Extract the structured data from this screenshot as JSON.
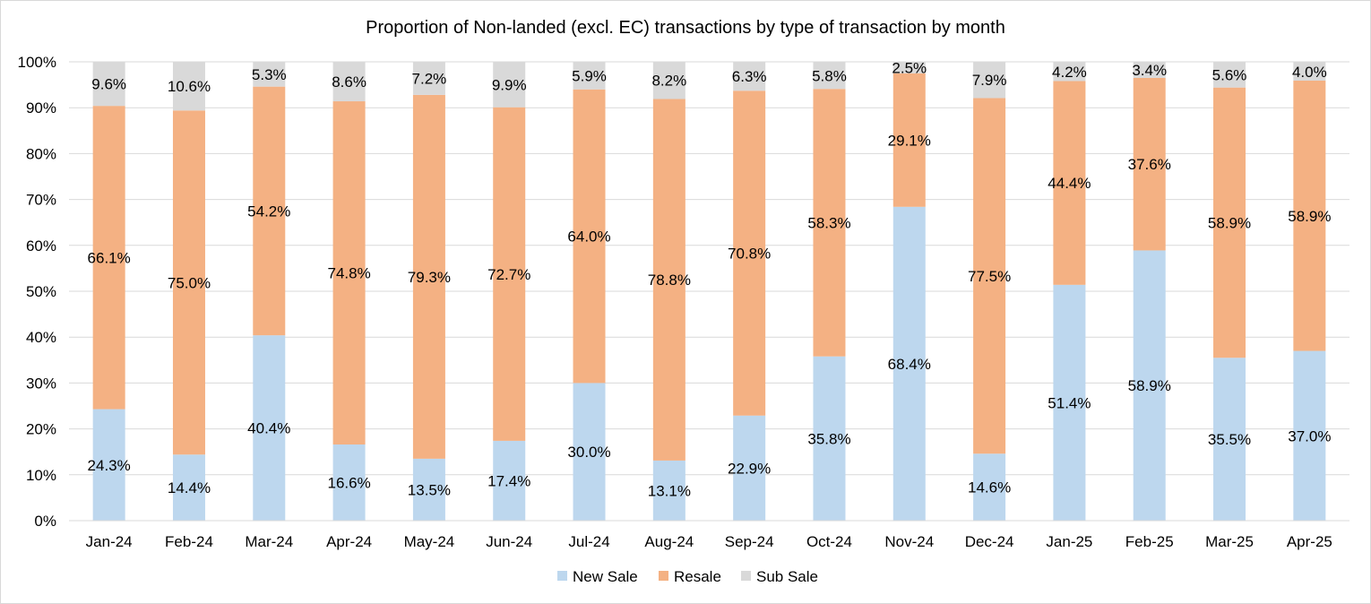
{
  "chart_data": {
    "type": "bar",
    "stacked": true,
    "percent_stacked": true,
    "title": "Proportion of Non-landed (excl. EC) transactions by type of transaction by month",
    "categories": [
      "Jan-24",
      "Feb-24",
      "Mar-24",
      "Apr-24",
      "May-24",
      "Jun-24",
      "Jul-24",
      "Aug-24",
      "Sep-24",
      "Oct-24",
      "Nov-24",
      "Dec-24",
      "Jan-25",
      "Feb-25",
      "Mar-25",
      "Apr-25"
    ],
    "series": [
      {
        "name": "New Sale",
        "color": "#bdd7ee",
        "values": [
          24.3,
          14.4,
          40.4,
          16.6,
          13.5,
          17.4,
          30.0,
          13.1,
          22.9,
          35.8,
          68.4,
          14.6,
          51.4,
          58.9,
          35.5,
          37.0
        ],
        "labels": [
          "24.3%",
          "14.4%",
          "40.4%",
          "16.6%",
          "13.5%",
          "17.4%",
          "30.0%",
          "13.1%",
          "22.9%",
          "35.8%",
          "68.4%",
          "14.6%",
          "51.4%",
          "58.9%",
          "35.5%",
          "37.0%"
        ]
      },
      {
        "name": "Resale",
        "color": "#f4b183",
        "values": [
          66.1,
          75.0,
          54.2,
          74.8,
          79.3,
          72.7,
          64.0,
          78.8,
          70.8,
          58.3,
          29.1,
          77.5,
          44.4,
          37.6,
          58.9,
          58.9
        ],
        "labels": [
          "66.1%",
          "75.0%",
          "54.2%",
          "74.8%",
          "79.3%",
          "72.7%",
          "64.0%",
          "78.8%",
          "70.8%",
          "58.3%",
          "29.1%",
          "77.5%",
          "44.4%",
          "37.6%",
          "58.9%",
          "58.9%"
        ]
      },
      {
        "name": "Sub Sale",
        "color": "#d9d9d9",
        "values": [
          9.6,
          10.6,
          5.3,
          8.6,
          7.2,
          9.9,
          5.9,
          8.2,
          6.3,
          5.8,
          2.5,
          7.9,
          4.2,
          3.4,
          5.6,
          4.0
        ],
        "labels": [
          "9.6%",
          "10.6%",
          "5.3%",
          "8.6%",
          "7.2%",
          "9.9%",
          "5.9%",
          "8.2%",
          "6.3%",
          "5.8%",
          "2.5%",
          "7.9%",
          "4.2%",
          "3.4%",
          "5.6%",
          "4.0%"
        ]
      }
    ],
    "y_axis": {
      "min": 0,
      "max": 100,
      "step": 10,
      "tick_labels": [
        "0%",
        "10%",
        "20%",
        "30%",
        "40%",
        "50%",
        "60%",
        "70%",
        "80%",
        "90%",
        "100%"
      ]
    },
    "grid": true,
    "gridline_color": "#d9d9d9",
    "legend_position": "bottom"
  }
}
